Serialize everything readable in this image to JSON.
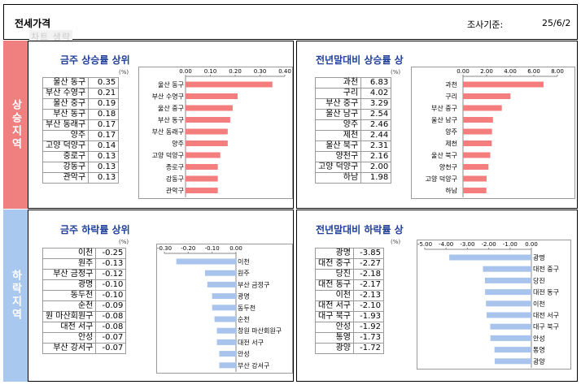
{
  "header": {
    "title": "전세가격",
    "date_label": "조사기준:",
    "date_value": "25/6/2",
    "watermark": "차트 생략"
  },
  "sections": {
    "rise_label": "상승지역",
    "fall_label": "하락지역"
  },
  "colors": {
    "rise_side": "#f08080",
    "fall_side": "#a8c8f0",
    "rise_bar": "#f47e7e",
    "fall_bar": "#a8c4ec",
    "title": "#1f3f99"
  },
  "unit_label": "(%)",
  "panels": [
    {
      "title": "금주 상승률 상위",
      "table": [
        [
          "울산 동구",
          "0.35"
        ],
        [
          "부산 수영구",
          "0.21"
        ],
        [
          "울산 중구",
          "0.19"
        ],
        [
          "부산 동구",
          "0.18"
        ],
        [
          "부산 동래구",
          "0.17"
        ],
        [
          "양주",
          "0.17"
        ],
        [
          "고양 덕양구",
          "0.14"
        ],
        [
          "중로구",
          "0.13"
        ],
        [
          "강동구",
          "0.13"
        ],
        [
          "관악구",
          "0.13"
        ]
      ]
    },
    {
      "title": "전년말대비 상승률 상",
      "table": [
        [
          "과천",
          "6.83"
        ],
        [
          "구리",
          "4.02"
        ],
        [
          "부산 중구",
          "3.29"
        ],
        [
          "울산 남구",
          "2.54"
        ],
        [
          "양주",
          "2.46"
        ],
        [
          "제천",
          "2.44"
        ],
        [
          "울산 북구",
          "2.31"
        ],
        [
          "양천구",
          "2.16"
        ],
        [
          "고양 덕양구",
          "2.00"
        ],
        [
          "하남",
          "1.98"
        ]
      ]
    },
    {
      "title": "금주 하락률 상위",
      "table": [
        [
          "이천",
          "-0.25"
        ],
        [
          "원주",
          "-0.13"
        ],
        [
          "부산 금정구",
          "-0.12"
        ],
        [
          "광명",
          "-0.10"
        ],
        [
          "동두천",
          "-0.10"
        ],
        [
          "순천",
          "-0.09"
        ],
        [
          "원 마산회원구",
          "-0.08"
        ],
        [
          "대전 서구",
          "-0.08"
        ],
        [
          "안성",
          "-0.07"
        ],
        [
          "부산 강서구",
          "-0.07"
        ]
      ]
    },
    {
      "title": "전년말대비 하락률 상",
      "table": [
        [
          "광명",
          "-3.85"
        ],
        [
          "대전 중구",
          "-2.27"
        ],
        [
          "당진",
          "-2.18"
        ],
        [
          "대전 동구",
          "-2.17"
        ],
        [
          "이천",
          "-2.13"
        ],
        [
          "대전 서구",
          "-2.10"
        ],
        [
          "대구 북구",
          "-1.93"
        ],
        [
          "안성",
          "-1.92"
        ],
        [
          "통영",
          "-1.73"
        ],
        [
          "광양",
          "-1.72"
        ]
      ]
    }
  ],
  "chart_data": [
    {
      "type": "bar",
      "orientation": "horizontal",
      "title": "금주 상승률 상위",
      "categories": [
        "울산 동구",
        "부산 수영구",
        "울산 중구",
        "부산 동구",
        "부산 동래구",
        "양주",
        "고양 덕양구",
        "종로구",
        "강동구",
        "관악구"
      ],
      "values": [
        0.35,
        0.21,
        0.19,
        0.18,
        0.17,
        0.17,
        0.14,
        0.13,
        0.13,
        0.13
      ],
      "xlim": [
        0,
        0.4
      ],
      "ticks": [
        "0.00",
        "0.10",
        "0.20",
        "0.30",
        "0.40"
      ],
      "label_side": "left"
    },
    {
      "type": "bar",
      "orientation": "horizontal",
      "title": "전년말대비 상승률 상",
      "categories": [
        "과천",
        "구리",
        "부산 중구",
        "울산 남구",
        "양주",
        "제천",
        "울산 북구",
        "양천구",
        "고양 덕양구",
        "하남"
      ],
      "values": [
        6.83,
        4.02,
        3.29,
        2.54,
        2.46,
        2.44,
        2.31,
        2.16,
        2.0,
        1.98
      ],
      "xlim": [
        0,
        8
      ],
      "ticks": [
        "0.00",
        "2.00",
        "4.00",
        "6.00",
        "8.00"
      ],
      "label_side": "left"
    },
    {
      "type": "bar",
      "orientation": "horizontal",
      "title": "금주 하락률 상위",
      "categories": [
        "이천",
        "원주",
        "부산 금정구",
        "광명",
        "동두천",
        "순천",
        "창원 마산회원구",
        "대전 서구",
        "안성",
        "부산 강서구"
      ],
      "values": [
        -0.25,
        -0.13,
        -0.12,
        -0.1,
        -0.1,
        -0.09,
        -0.08,
        -0.08,
        -0.07,
        -0.07
      ],
      "xlim": [
        -0.3,
        0
      ],
      "ticks": [
        "-0.30",
        "-0.20",
        "-0.10",
        "0.00"
      ],
      "label_side": "right"
    },
    {
      "type": "bar",
      "orientation": "horizontal",
      "title": "전년말대비 하락률 상",
      "categories": [
        "광명",
        "대전 중구",
        "당진",
        "대전 동구",
        "이천",
        "대전 서구",
        "대구 북구",
        "안성",
        "통영",
        "광양"
      ],
      "values": [
        -3.85,
        -2.27,
        -2.18,
        -2.17,
        -2.13,
        -2.1,
        -1.93,
        -1.92,
        -1.73,
        -1.72
      ],
      "xlim": [
        -5,
        0
      ],
      "ticks": [
        "-5.00",
        "-4.00",
        "-3.00",
        "-2.00",
        "-1.00",
        "0.00"
      ],
      "label_side": "right"
    }
  ]
}
